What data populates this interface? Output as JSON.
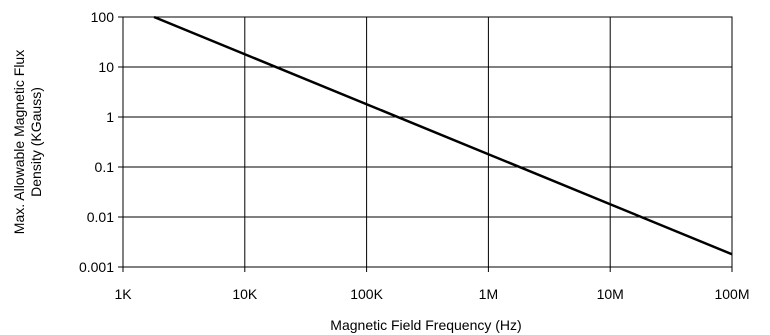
{
  "chart_data": {
    "type": "line",
    "title": "",
    "xlabel": "Magnetic Field Frequency (Hz)",
    "ylabel_lines": [
      "Max. Allowable Magnetic Flux",
      "Density (KGauss)"
    ],
    "x_scale": "log",
    "y_scale": "log",
    "xlim": [
      1000,
      100000000
    ],
    "ylim": [
      0.001,
      100
    ],
    "grid": true,
    "x_ticks": [
      {
        "value": 1000,
        "label": "1K"
      },
      {
        "value": 10000,
        "label": "10K"
      },
      {
        "value": 100000,
        "label": "100K"
      },
      {
        "value": 1000000,
        "label": "1M"
      },
      {
        "value": 10000000,
        "label": "10M"
      },
      {
        "value": 100000000,
        "label": "100M"
      }
    ],
    "y_ticks": [
      {
        "value": 0.001,
        "label": "0.001"
      },
      {
        "value": 0.01,
        "label": "0.01"
      },
      {
        "value": 0.1,
        "label": "0.1"
      },
      {
        "value": 1,
        "label": "1"
      },
      {
        "value": 10,
        "label": "10"
      },
      {
        "value": 100,
        "label": "100"
      }
    ],
    "series": [
      {
        "x": [
          1800,
          10000,
          100000,
          1000000,
          10000000,
          100000000
        ],
        "y": [
          100,
          18,
          1.8,
          0.18,
          0.018,
          0.0018
        ]
      }
    ]
  }
}
